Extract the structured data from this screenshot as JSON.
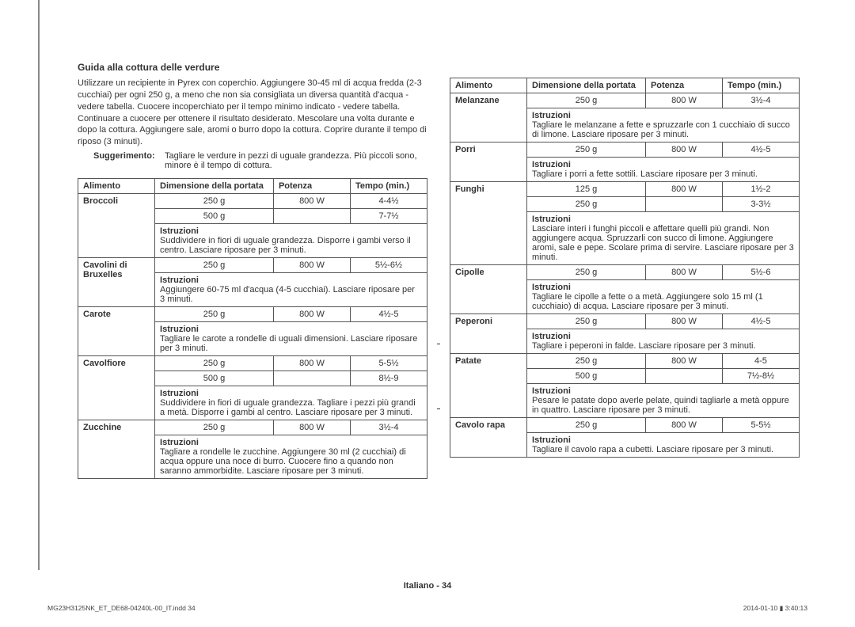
{
  "title": "Guida alla cottura delle verdure",
  "intro": "Utilizzare un recipiente in Pyrex con coperchio. Aggiungere 30-45 ml di acqua fredda (2-3 cucchiai) per ogni 250 g, a meno che non sia consigliata un diversa quantità d'acqua - vedere tabella. Cuocere incoperchiato per il tempo minimo indicato - vedere tabella. Continuare a cuocere per ottenere il risultato desiderato. Mescolare una volta durante e dopo la cottura. Aggiungere sale, aromi o burro dopo la cottura. Coprire durante il tempo di riposo (3 minuti).",
  "sugg_label": "Suggerimento:",
  "sugg_text": "Tagliare le verdure in pezzi di uguale grandezza. Più piccoli sono, minore è il tempo di cottura.",
  "headers": {
    "alimento": "Alimento",
    "dim": "Dimensione della portata",
    "pot": "Potenza",
    "tempo": "Tempo (min.)"
  },
  "istr_label": "Istruzioni",
  "left": [
    {
      "name": "Broccoli",
      "rows": [
        [
          "250 g",
          "800 W",
          "4-4½"
        ],
        [
          "500 g",
          "",
          "7-7½"
        ]
      ],
      "istr": "Suddividere in fiori di uguale grandezza. Disporre i gambi verso il centro. Lasciare riposare per 3 minuti."
    },
    {
      "name": "Cavolini di Bruxelles",
      "rows": [
        [
          "250 g",
          "800 W",
          "5½-6½"
        ]
      ],
      "istr": "Aggiungere 60-75 ml d'acqua (4-5 cucchiai). Lasciare riposare per 3 minuti."
    },
    {
      "name": "Carote",
      "rows": [
        [
          "250 g",
          "800 W",
          "4½-5"
        ]
      ],
      "istr": "Tagliare le carote a rondelle di uguali dimensioni. Lasciare riposare per 3 minuti."
    },
    {
      "name": "Cavolfiore",
      "rows": [
        [
          "250 g",
          "800 W",
          "5-5½"
        ],
        [
          "500 g",
          "",
          "8½-9"
        ]
      ],
      "istr": "Suddividere in fiori di uguale grandezza. Tagliare i pezzi più grandi a metà. Disporre i gambi al centro. Lasciare riposare per 3 minuti."
    },
    {
      "name": "Zucchine",
      "rows": [
        [
          "250 g",
          "800 W",
          "3½-4"
        ]
      ],
      "istr": "Tagliare a rondelle le zucchine. Aggiungere 30 ml (2 cucchiai) di acqua oppure una noce di burro. Cuocere fino a quando non saranno ammorbidite. Lasciare riposare per 3 minuti."
    }
  ],
  "right": [
    {
      "name": "Melanzane",
      "rows": [
        [
          "250 g",
          "800 W",
          "3½-4"
        ]
      ],
      "istr": "Tagliare le melanzane a fette e spruzzarle con 1 cucchiaio di succo di limone. Lasciare riposare per 3 minuti."
    },
    {
      "name": "Porri",
      "rows": [
        [
          "250 g",
          "800 W",
          "4½-5"
        ]
      ],
      "istr": "Tagliare i porri a fette sottili. Lasciare riposare per 3 minuti."
    },
    {
      "name": "Funghi",
      "rows": [
        [
          "125 g",
          "800 W",
          "1½-2"
        ],
        [
          "250 g",
          "",
          "3-3½"
        ]
      ],
      "istr": "Lasciare interi i funghi piccoli e affettare quelli più grandi. Non aggiungere acqua. Spruzzarli con succo di limone. Aggiungere aromi, sale e pepe. Scolare prima di servire. Lasciare riposare per 3 minuti."
    },
    {
      "name": "Cipolle",
      "rows": [
        [
          "250 g",
          "800 W",
          "5½-6"
        ]
      ],
      "istr": "Tagliare le cipolle a fette o a metà. Aggiungere solo 15 ml (1 cucchiaio) di acqua. Lasciare riposare per 3 minuti."
    },
    {
      "name": "Peperoni",
      "rows": [
        [
          "250 g",
          "800 W",
          "4½-5"
        ]
      ],
      "istr": "Tagliare i peperoni in falde. Lasciare riposare per 3 minuti."
    },
    {
      "name": "Patate",
      "rows": [
        [
          "250 g",
          "800 W",
          "4-5"
        ],
        [
          "500 g",
          "",
          "7½-8½"
        ]
      ],
      "istr": "Pesare le patate dopo averle pelate, quindi tagliarle a metà oppure in quattro. Lasciare riposare per 3 minuti."
    },
    {
      "name": "Cavolo rapa",
      "rows": [
        [
          "250 g",
          "800 W",
          "5-5½"
        ]
      ],
      "istr": "Tagliare il cavolo rapa a cubetti. Lasciare riposare per 3 minuti."
    }
  ],
  "footer": "Italiano - 34",
  "footline_left": "MG23H3125NK_ET_DE68-04240L-00_IT.indd   34",
  "footline_right": "2014-01-10   ▮ 3:40:13"
}
